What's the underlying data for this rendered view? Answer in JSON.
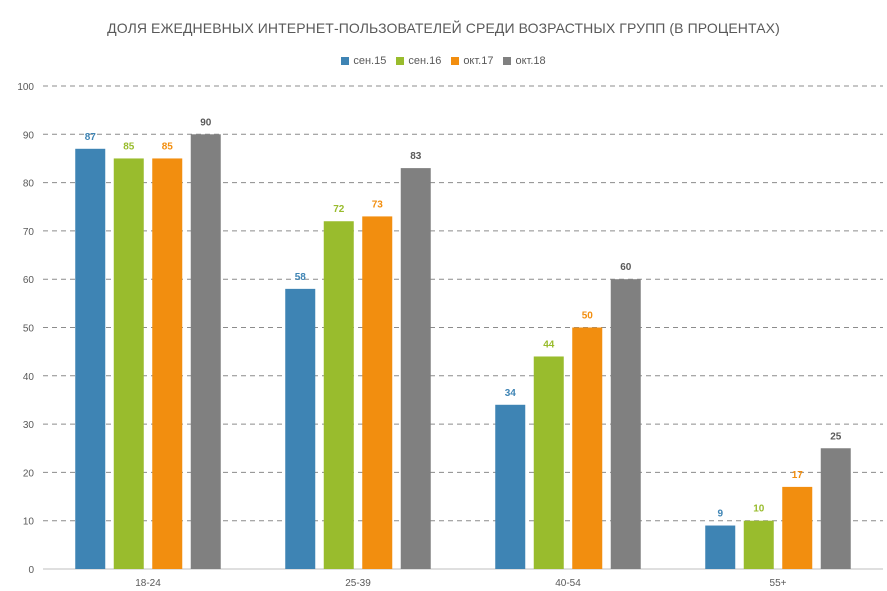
{
  "chart_data": {
    "type": "bar",
    "title": "ДОЛЯ ЕЖЕДНЕВНЫХ ИНТЕРНЕТ-ПОЛЬЗОВАТЕЛЕЙ СРЕДИ ВОЗРАСТНЫХ ГРУПП (В ПРОЦЕНТАХ)",
    "categories": [
      "18-24",
      "25-39",
      "40-54",
      "55+"
    ],
    "series": [
      {
        "name": "сен.15",
        "color": "#3e84b4",
        "values": [
          87,
          58,
          34,
          9
        ]
      },
      {
        "name": "сен.16",
        "color": "#99bc2d",
        "values": [
          85,
          72,
          44,
          10
        ]
      },
      {
        "name": "окт.17",
        "color": "#f28e0f",
        "values": [
          85,
          73,
          50,
          17
        ]
      },
      {
        "name": "окт.18",
        "color": "#808080",
        "values": [
          90,
          83,
          60,
          25
        ]
      }
    ],
    "ylim": [
      0,
      100
    ],
    "yticks": [
      0,
      10,
      20,
      30,
      40,
      50,
      60,
      70,
      80,
      90,
      100
    ],
    "grid": true,
    "legend_position": "top"
  }
}
